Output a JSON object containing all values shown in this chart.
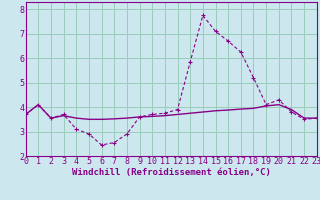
{
  "xlabel": "Windchill (Refroidissement éolien,°C)",
  "background_color": "#cce8ee",
  "grid_color": "#99ccbb",
  "line_color": "#880088",
  "hours": [
    0,
    1,
    2,
    3,
    4,
    5,
    6,
    7,
    8,
    9,
    10,
    11,
    12,
    13,
    14,
    15,
    16,
    17,
    18,
    19,
    20,
    21,
    22,
    23
  ],
  "windchill": [
    3.7,
    4.1,
    3.55,
    3.7,
    3.1,
    2.9,
    2.45,
    2.55,
    2.9,
    3.6,
    3.7,
    3.75,
    3.9,
    5.85,
    7.75,
    7.1,
    6.7,
    6.25,
    5.2,
    4.1,
    4.3,
    3.8,
    3.5,
    3.55
  ],
  "temperature": [
    3.7,
    4.1,
    3.55,
    3.65,
    3.55,
    3.5,
    3.5,
    3.52,
    3.55,
    3.6,
    3.62,
    3.65,
    3.7,
    3.75,
    3.8,
    3.85,
    3.88,
    3.92,
    3.95,
    4.05,
    4.1,
    3.9,
    3.55,
    3.55
  ],
  "xlim": [
    0,
    23
  ],
  "ylim": [
    2.0,
    8.3
  ],
  "yticks": [
    2,
    3,
    4,
    5,
    6,
    7,
    8
  ],
  "xticks": [
    0,
    1,
    2,
    3,
    4,
    5,
    6,
    7,
    8,
    9,
    10,
    11,
    12,
    13,
    14,
    15,
    16,
    17,
    18,
    19,
    20,
    21,
    22,
    23
  ],
  "fontsize_label": 6.5,
  "fontsize_tick": 6.0
}
